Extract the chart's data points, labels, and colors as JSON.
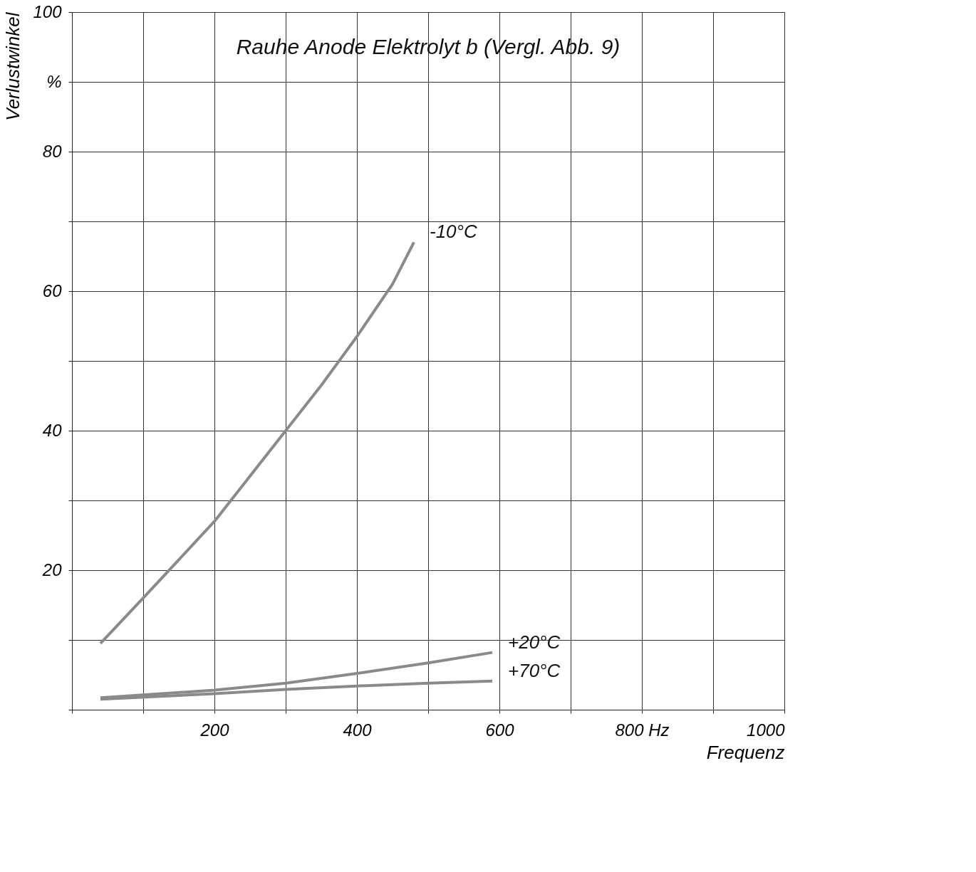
{
  "chart_data": {
    "type": "line",
    "title": "Rauhe Anode  Elektrolyt b  (Vergl. Abb. 9)",
    "xlabel": "Frequenz",
    "ylabel": "Verlustwinkel",
    "xlim": [
      0,
      1000
    ],
    "ylim": [
      0,
      100
    ],
    "xticks": [
      {
        "value": 0,
        "label": null
      },
      {
        "value": 100,
        "label": null
      },
      200,
      {
        "value": 300,
        "label": null
      },
      400,
      {
        "value": 500,
        "label": null
      },
      600,
      {
        "value": 700,
        "label": null
      },
      {
        "value": 800,
        "label": "800 Hz"
      },
      {
        "value": 900,
        "label": null
      },
      1000
    ],
    "yticks": [
      {
        "value": 0,
        "label": null
      },
      {
        "value": 10,
        "label": null
      },
      20,
      {
        "value": 30,
        "label": null
      },
      40,
      {
        "value": 50,
        "label": null
      },
      60,
      {
        "value": 70,
        "label": null
      },
      80,
      {
        "value": 90,
        "label": "%"
      },
      100
    ],
    "grid": true,
    "legend": false,
    "marker": "none",
    "line_style": "solid",
    "series": [
      {
        "name": "-10°C",
        "color": "#8a8a8a",
        "x": [
          40,
          100,
          150,
          200,
          250,
          300,
          350,
          400,
          450,
          480
        ],
        "values": [
          9.5,
          16,
          21.5,
          27,
          33.5,
          40,
          46.5,
          53.5,
          61,
          67
        ]
      },
      {
        "name": "+20°C",
        "color": "#8a8a8a",
        "x": [
          40,
          200,
          300,
          400,
          500,
          590
        ],
        "values": [
          1.7,
          2.8,
          3.8,
          5.2,
          6.7,
          8.2
        ]
      },
      {
        "name": "+70°C",
        "color": "#8a8a8a",
        "x": [
          40,
          200,
          300,
          400,
          500,
          590
        ],
        "values": [
          1.5,
          2.3,
          2.9,
          3.4,
          3.8,
          4.1
        ]
      }
    ]
  }
}
